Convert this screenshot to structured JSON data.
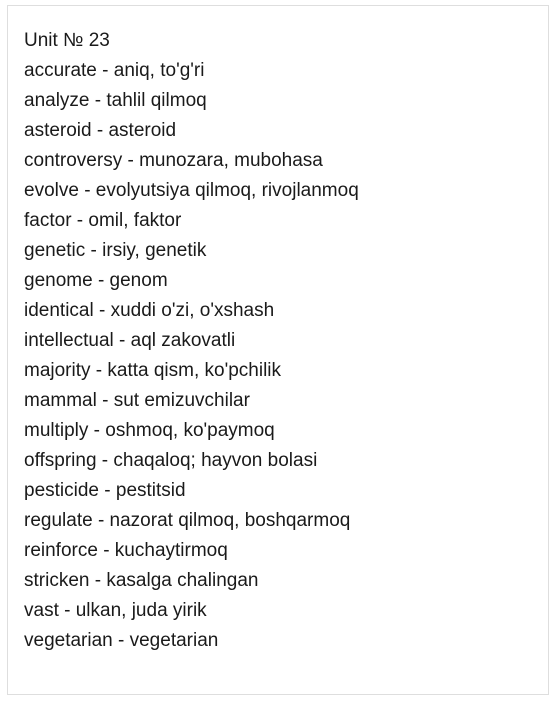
{
  "document": {
    "title": "Unit № 23",
    "entries": [
      "accurate - aniq, to'g'ri",
      "analyze - tahlil qilmoq",
      "asteroid - asteroid",
      "controversy - munozara, mubohasa",
      "evolve - evolyutsiya qilmoq, rivojlanmoq",
      "factor - omil, faktor",
      "genetic - irsiy, genetik",
      "genome - genom",
      "identical - xuddi o'zi, o'xshash",
      "intellectual - aql zakovatli",
      "majority - katta qism, ko'pchilik",
      "mammal - sut emizuvchilar",
      "multiply - oshmoq, ko'paymoq",
      "offspring - chaqaloq; hayvon bolasi",
      "pesticide - pestitsid",
      "regulate - nazorat qilmoq, boshqarmoq",
      "reinforce - kuchaytirmoq",
      "stricken - kasalga chalingan",
      "vast - ulkan, juda yirik",
      "vegetarian - vegetarian"
    ]
  }
}
